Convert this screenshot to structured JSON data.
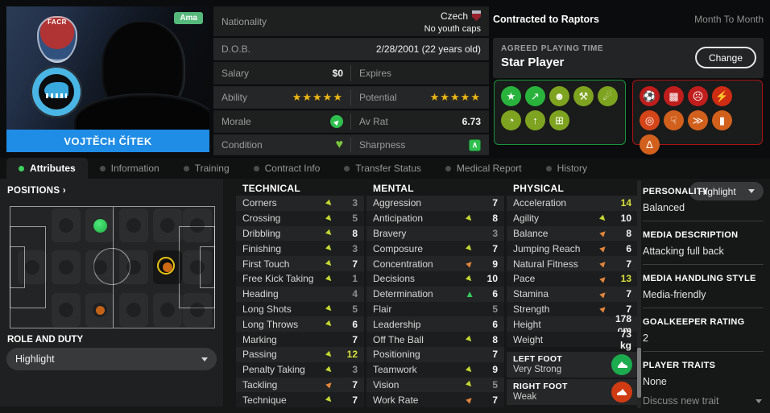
{
  "player": {
    "name": "VOJTĚCH ČÍTEK",
    "status_badge": "Ama",
    "facr_text": "FACR"
  },
  "info": {
    "nationality_label": "Nationality",
    "nationality": "Czech",
    "youth_caps": "No youth caps",
    "dob_label": "D.O.B.",
    "dob": "2/28/2001 (22 years old)",
    "salary_label": "Salary",
    "salary": "$0",
    "expires_label": "Expires",
    "expires": "",
    "ability_label": "Ability",
    "ability_stars": "★★★★★",
    "potential_label": "Potential",
    "potential_stars": "★★★★★",
    "morale_label": "Morale",
    "avrat_label": "Av Rat",
    "avrat": "6.73",
    "condition_label": "Condition",
    "sharpness_label": "Sharpness"
  },
  "contract": {
    "title": "Contracted to Raptors",
    "term": "Month To Month",
    "apt_label": "AGREED PLAYING TIME",
    "apt_value": "Star Player",
    "change_label": "Change"
  },
  "pros_icons": [
    {
      "name": "star-icon",
      "glyph": "★",
      "color": "#29b33d"
    },
    {
      "name": "form-rising-icon",
      "glyph": "↗",
      "color": "#29b33d"
    },
    {
      "name": "head-icon",
      "glyph": "☻",
      "color": "#7ea320"
    },
    {
      "name": "bone-icon",
      "glyph": "⚒",
      "color": "#7ea320"
    },
    {
      "name": "boot-kick-icon",
      "glyph": "☄",
      "color": "#7ea320"
    },
    {
      "name": "cone-clock-icon",
      "glyph": "◔",
      "color": "#7ea320"
    },
    {
      "name": "cone-up-icon",
      "glyph": "↑",
      "color": "#7ea320"
    },
    {
      "name": "pitch-icon",
      "glyph": "⊞",
      "color": "#7ea320"
    }
  ],
  "cons_icons": [
    {
      "name": "ball-warning-icon",
      "glyph": "⚽",
      "color": "#c01d1d"
    },
    {
      "name": "bib-icon",
      "glyph": "▩",
      "color": "#c01d1d"
    },
    {
      "name": "cone-sad-icon",
      "glyph": "☹",
      "color": "#c01d1d"
    },
    {
      "name": "broken-bone-icon",
      "glyph": "⚡",
      "color": "#cf2c14"
    },
    {
      "name": "target-icon",
      "glyph": "◎",
      "color": "#d4451a"
    },
    {
      "name": "toe-icon",
      "glyph": "☟",
      "color": "#d2601d"
    },
    {
      "name": "boots-icon",
      "glyph": "≫",
      "color": "#d2601d"
    },
    {
      "name": "card-hand-icon",
      "glyph": "▮",
      "color": "#d2601d"
    },
    {
      "name": "flask-icon",
      "glyph": "Δ",
      "color": "#d2601d"
    }
  ],
  "tabs": [
    {
      "label": "Attributes",
      "active": true
    },
    {
      "label": "Information",
      "active": false
    },
    {
      "label": "Training",
      "active": false
    },
    {
      "label": "Contract Info",
      "active": false
    },
    {
      "label": "Transfer Status",
      "active": false
    },
    {
      "label": "Medical Report",
      "active": false
    },
    {
      "label": "History",
      "active": false
    }
  ],
  "positions": {
    "header": "POSITIONS ›",
    "dropdown_value": "Highlight",
    "role_header": "ROLE AND DUTY",
    "role_dropdown_value": "Highlight",
    "pitch": {
      "cells": [
        [
          0,
          1
        ],
        [
          0,
          2
        ],
        [
          0,
          3
        ],
        [
          0,
          4
        ],
        [
          0,
          5
        ],
        [
          1,
          0
        ],
        [
          1,
          1
        ],
        [
          1,
          2
        ],
        [
          1,
          3
        ],
        [
          1,
          4
        ],
        [
          1,
          5
        ],
        [
          2,
          1
        ],
        [
          2,
          2
        ],
        [
          2,
          3
        ],
        [
          2,
          4
        ],
        [
          2,
          5
        ]
      ],
      "dots": [
        {
          "kind": "natural",
          "row": 0,
          "col": 2
        },
        {
          "kind": "selected",
          "row": 1,
          "col": 4
        },
        {
          "kind": "low",
          "row": 2,
          "col": 2
        }
      ]
    }
  },
  "attributes": {
    "technical": {
      "header": "TECHNICAL",
      "rows": [
        {
          "label": "Corners",
          "value": "3",
          "arrow": "down",
          "tier": "low"
        },
        {
          "label": "Crossing",
          "value": "5",
          "arrow": "down",
          "tier": "low"
        },
        {
          "label": "Dribbling",
          "value": "8",
          "arrow": "down",
          "tier": "mid"
        },
        {
          "label": "Finishing",
          "value": "3",
          "arrow": "down",
          "tier": "low"
        },
        {
          "label": "First Touch",
          "value": "7",
          "arrow": "down",
          "tier": "mid"
        },
        {
          "label": "Free Kick Taking",
          "value": "1",
          "arrow": "down",
          "tier": "low"
        },
        {
          "label": "Heading",
          "value": "4",
          "arrow": "none",
          "tier": "low"
        },
        {
          "label": "Long Shots",
          "value": "5",
          "arrow": "down",
          "tier": "low"
        },
        {
          "label": "Long Throws",
          "value": "6",
          "arrow": "down",
          "tier": "mid"
        },
        {
          "label": "Marking",
          "value": "7",
          "arrow": "none",
          "tier": "mid"
        },
        {
          "label": "Passing",
          "value": "12",
          "arrow": "down",
          "tier": "high"
        },
        {
          "label": "Penalty Taking",
          "value": "3",
          "arrow": "down",
          "tier": "low"
        },
        {
          "label": "Tackling",
          "value": "7",
          "arrow": "up",
          "tier": "mid"
        },
        {
          "label": "Technique",
          "value": "7",
          "arrow": "down",
          "tier": "mid"
        }
      ]
    },
    "mental": {
      "header": "MENTAL",
      "rows": [
        {
          "label": "Aggression",
          "value": "7",
          "arrow": "none",
          "tier": "mid"
        },
        {
          "label": "Anticipation",
          "value": "8",
          "arrow": "down",
          "tier": "mid"
        },
        {
          "label": "Bravery",
          "value": "3",
          "arrow": "none",
          "tier": "low"
        },
        {
          "label": "Composure",
          "value": "7",
          "arrow": "down",
          "tier": "mid"
        },
        {
          "label": "Concentration",
          "value": "9",
          "arrow": "up",
          "tier": "mid"
        },
        {
          "label": "Decisions",
          "value": "10",
          "arrow": "down",
          "tier": "mid"
        },
        {
          "label": "Determination",
          "value": "6",
          "arrow": "up-green",
          "tier": "mid"
        },
        {
          "label": "Flair",
          "value": "5",
          "arrow": "none",
          "tier": "low"
        },
        {
          "label": "Leadership",
          "value": "6",
          "arrow": "none",
          "tier": "mid"
        },
        {
          "label": "Off The Ball",
          "value": "8",
          "arrow": "down",
          "tier": "mid"
        },
        {
          "label": "Positioning",
          "value": "7",
          "arrow": "none",
          "tier": "mid"
        },
        {
          "label": "Teamwork",
          "value": "9",
          "arrow": "down",
          "tier": "mid"
        },
        {
          "label": "Vision",
          "value": "5",
          "arrow": "down",
          "tier": "low"
        },
        {
          "label": "Work Rate",
          "value": "7",
          "arrow": "up",
          "tier": "mid"
        }
      ]
    },
    "physical": {
      "header": "PHYSICAL",
      "rows": [
        {
          "label": "Acceleration",
          "value": "14",
          "arrow": "none",
          "tier": "high"
        },
        {
          "label": "Agility",
          "value": "10",
          "arrow": "down",
          "tier": "mid"
        },
        {
          "label": "Balance",
          "value": "8",
          "arrow": "up",
          "tier": "mid"
        },
        {
          "label": "Jumping Reach",
          "value": "6",
          "arrow": "up",
          "tier": "mid"
        },
        {
          "label": "Natural Fitness",
          "value": "7",
          "arrow": "up",
          "tier": "mid"
        },
        {
          "label": "Pace",
          "value": "13",
          "arrow": "up",
          "tier": "high"
        },
        {
          "label": "Stamina",
          "value": "7",
          "arrow": "up",
          "tier": "mid"
        },
        {
          "label": "Strength",
          "value": "7",
          "arrow": "up",
          "tier": "mid"
        },
        {
          "label": "Height",
          "value": "178 cm",
          "arrow": "none",
          "tier": "mid"
        },
        {
          "label": "Weight",
          "value": "73 kg",
          "arrow": "none",
          "tier": "mid"
        }
      ]
    }
  },
  "feet": {
    "left": {
      "title": "LEFT FOOT",
      "strength": "Very Strong",
      "color": "#1cab4e"
    },
    "right": {
      "title": "RIGHT FOOT",
      "strength": "Weak",
      "color": "#cf3c14"
    }
  },
  "profile_sections": [
    {
      "header": "PERSONALITY",
      "value": "Balanced"
    },
    {
      "header": "MEDIA DESCRIPTION",
      "value": "Attacking full back"
    },
    {
      "header": "MEDIA HANDLING STYLE",
      "value": "Media-friendly"
    },
    {
      "header": "GOALKEEPER RATING",
      "value": "2"
    }
  ],
  "traits": {
    "header": "PLAYER TRAITS",
    "value": "None",
    "action": "Discuss new trait"
  },
  "colors": {
    "accent_blue": "#1f8ce6",
    "star_gold": "#eab616",
    "tier_high": "#d8e03c",
    "arrow_yellow": "#c3d633",
    "arrow_orange": "#e2863c",
    "arrow_green": "#35c95c",
    "pros_border": "#18953b",
    "cons_border": "#ad1212",
    "active_dot": "#3ed160"
  }
}
